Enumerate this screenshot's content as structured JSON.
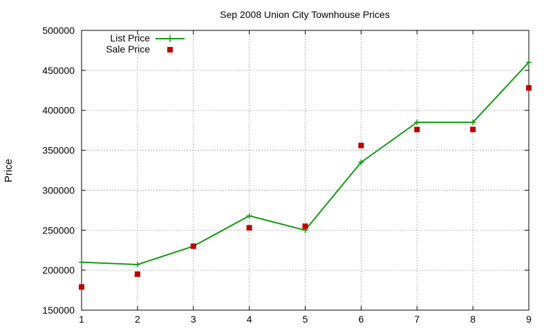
{
  "colors": {
    "list_price": "#119911",
    "sale_price": "#c00000"
  },
  "chart_data": {
    "type": "line",
    "title": "Sep 2008 Union City Townhouse Prices",
    "xlabel": "",
    "ylabel": "Price",
    "x": [
      1,
      2,
      3,
      4,
      5,
      6,
      7,
      8,
      9
    ],
    "xlim": [
      1,
      9
    ],
    "ylim": [
      150000,
      500000
    ],
    "x_ticks": [
      "1",
      "2",
      "3",
      "4",
      "5",
      "6",
      "7",
      "8",
      "9"
    ],
    "y_ticks": [
      "150000",
      "200000",
      "250000",
      "300000",
      "350000",
      "400000",
      "450000",
      "500000"
    ],
    "grid": true,
    "legend_position": "top-left",
    "series": [
      {
        "name": "List Price",
        "style": "line-with-plus-markers",
        "values": [
          210000,
          207000,
          230000,
          268000,
          250000,
          335000,
          385000,
          385000,
          460000
        ]
      },
      {
        "name": "Sale Price",
        "style": "square-points",
        "values": [
          179000,
          195000,
          230000,
          253000,
          255000,
          356000,
          376000,
          376000,
          428000
        ]
      }
    ]
  }
}
